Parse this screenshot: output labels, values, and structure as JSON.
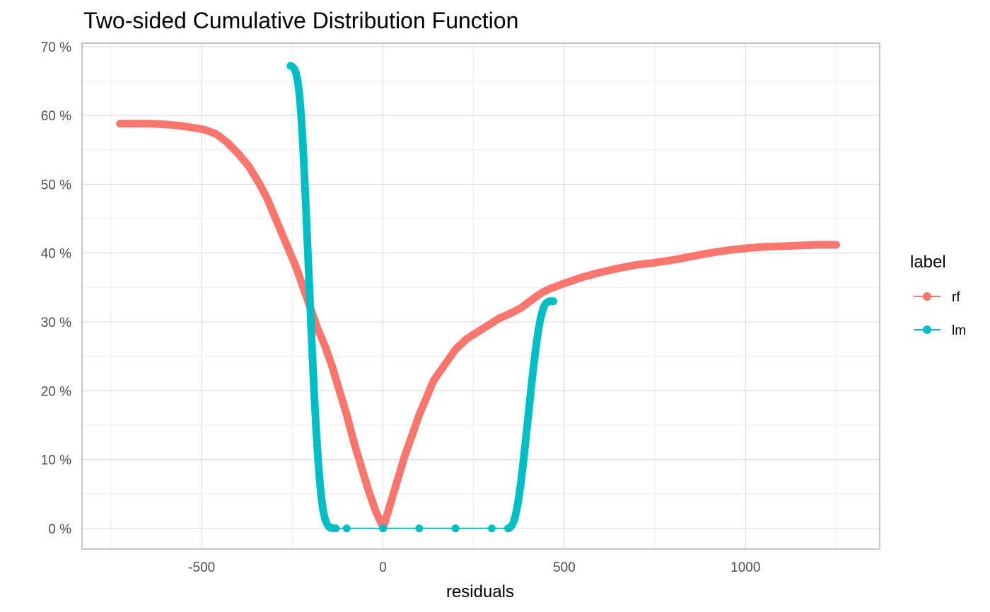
{
  "chart_data": {
    "type": "line",
    "title": "Two-sided Cumulative Distribution Function",
    "xlabel": "residuals",
    "ylabel": "",
    "xlim": [
      -830,
      1370
    ],
    "ylim": [
      -3,
      70.5
    ],
    "x_ticks": [
      -500,
      0,
      500,
      1000
    ],
    "x_tick_labels": [
      "-500",
      "0",
      "500",
      "1000"
    ],
    "y_ticks": [
      0,
      10,
      20,
      30,
      40,
      50,
      60,
      70
    ],
    "y_tick_labels": [
      "0 %",
      "10 %",
      "20 %",
      "30 %",
      "40 %",
      "50 %",
      "60 %",
      "70 %"
    ],
    "grid": true,
    "legend": {
      "title": "label",
      "position": "right"
    },
    "series": [
      {
        "name": "rf",
        "color": "#F8766D",
        "x": [
          -725,
          -690,
          -640,
          -600,
          -560,
          -520,
          -490,
          -460,
          -430,
          -400,
          -370,
          -340,
          -320,
          -300,
          -280,
          -260,
          -240,
          -220,
          -200,
          -180,
          -160,
          -140,
          -120,
          -100,
          -80,
          -60,
          -40,
          -20,
          -5,
          0,
          5,
          20,
          40,
          60,
          80,
          100,
          120,
          140,
          160,
          180,
          200,
          230,
          260,
          290,
          320,
          350,
          380,
          410,
          440,
          460,
          480,
          500,
          550,
          600,
          650,
          700,
          750,
          800,
          850,
          900,
          950,
          1000,
          1050,
          1100,
          1150,
          1200,
          1250
        ],
        "y": [
          58.8,
          58.8,
          58.8,
          58.7,
          58.5,
          58.2,
          57.9,
          57.3,
          56.1,
          54.5,
          52.6,
          50.0,
          48.0,
          45.5,
          43.0,
          40.5,
          38.0,
          35.0,
          32.0,
          29.0,
          26.5,
          23.5,
          20.0,
          16.5,
          12.5,
          9.0,
          5.5,
          2.5,
          0.8,
          0.2,
          0.8,
          3.5,
          7.0,
          10.5,
          13.5,
          16.5,
          19.0,
          21.5,
          23.0,
          24.5,
          26.0,
          27.5,
          28.5,
          29.5,
          30.5,
          31.2,
          32.0,
          33.2,
          34.3,
          34.8,
          35.2,
          35.6,
          36.5,
          37.2,
          37.8,
          38.3,
          38.6,
          39.0,
          39.5,
          40.0,
          40.4,
          40.7,
          40.9,
          41.0,
          41.1,
          41.2,
          41.2
        ]
      },
      {
        "name": "lm",
        "color": "#00BFC4",
        "x": [
          -255,
          -250,
          -245,
          -240,
          -235,
          -230,
          -225,
          -220,
          -215,
          -210,
          -205,
          -200,
          -195,
          -190,
          -185,
          -180,
          -175,
          -170,
          -165,
          -160,
          -155,
          -150,
          -145,
          -140,
          -135,
          -130,
          -100,
          0,
          100,
          200,
          300,
          345,
          350,
          355,
          360,
          365,
          370,
          375,
          380,
          385,
          390,
          395,
          400,
          405,
          410,
          415,
          420,
          425,
          430,
          435,
          440,
          445,
          450,
          455,
          460,
          465,
          470
        ],
        "y": [
          67.2,
          67.1,
          66.8,
          66.2,
          65.0,
          62.8,
          59.5,
          55.0,
          49.5,
          43.5,
          37.5,
          31.5,
          25.5,
          20.0,
          15.0,
          10.8,
          7.2,
          4.5,
          2.6,
          1.4,
          0.7,
          0.3,
          0.1,
          0.05,
          0.02,
          0.0,
          0.0,
          0.0,
          0.0,
          0.0,
          0.0,
          0.0,
          0.1,
          0.4,
          0.9,
          1.8,
          3.0,
          4.6,
          6.5,
          8.7,
          11.0,
          13.5,
          16.0,
          18.5,
          21.0,
          23.3,
          25.5,
          27.5,
          29.2,
          30.6,
          31.6,
          32.3,
          32.7,
          32.9,
          33.0,
          33.0,
          33.0
        ]
      }
    ]
  }
}
